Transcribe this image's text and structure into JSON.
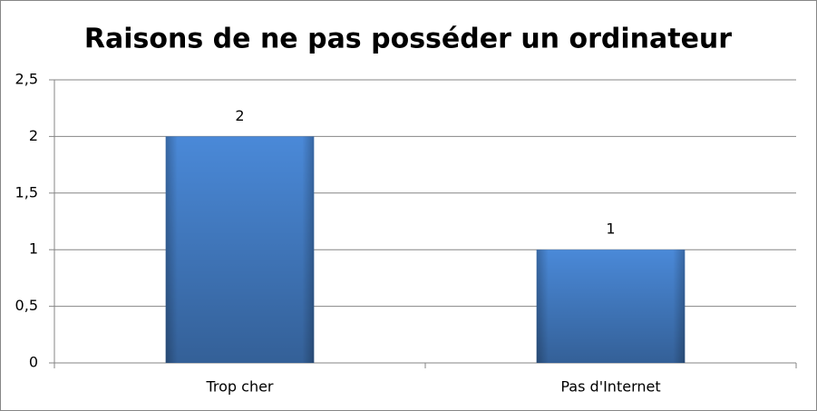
{
  "chart_data": {
    "type": "bar",
    "title": "Raisons de ne pas posséder un ordinateur",
    "categories": [
      "Trop cher",
      "Pas d'Internet"
    ],
    "values": [
      2,
      1
    ],
    "color": "#4a89d8",
    "ylim": [
      0,
      2.5
    ],
    "yticks": [
      0,
      {
        "value": 0.5,
        "label": "0,5"
      },
      1,
      {
        "value": 1.5,
        "label": "1,5"
      },
      2,
      {
        "value": 2.5,
        "label": "2,5"
      }
    ],
    "grid": true
  }
}
